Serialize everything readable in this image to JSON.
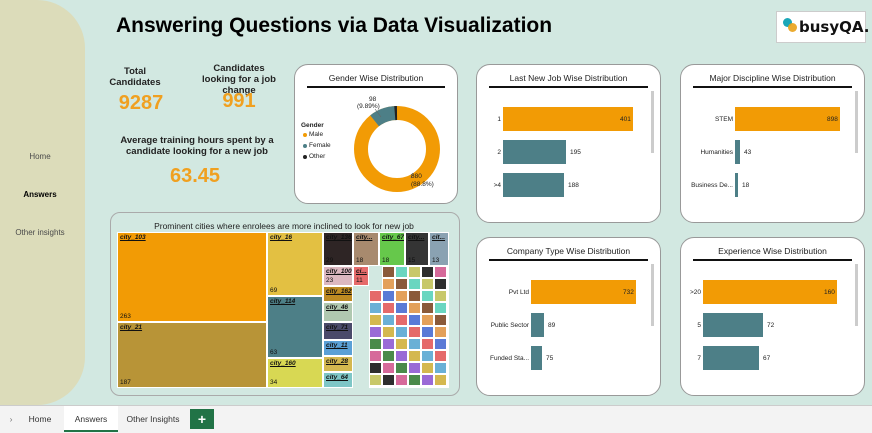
{
  "title": "Answering Questions via Data Visualization",
  "logo": {
    "text": "busyQA."
  },
  "nav": [
    {
      "label": "Home"
    },
    {
      "label": "Answers"
    },
    {
      "label": "Other insights"
    }
  ],
  "kpis": {
    "total_label": "Total Candidates",
    "total_value": "9287",
    "change_label": "Candidates looking for a job change",
    "change_value": "991",
    "training_label": "Average training hours spent by a candidate looking for a new job",
    "training_value": "63.45"
  },
  "gender": {
    "title": "Gender Wise Distribution",
    "legend_title": "Gender",
    "legend": [
      "Male",
      "Female",
      "Other"
    ],
    "label_a": "98",
    "label_a_pct": "(9.89%)",
    "label_b": "880",
    "label_b_pct": "(88.8%)"
  },
  "colors": {
    "orange": "#f29b05",
    "teal": "#4d7f87",
    "accent_green": "#217346",
    "black": "#222222"
  },
  "last_new_job": {
    "title": "Last New Job Wise Distribution",
    "categories": [
      "1",
      "2",
      ">4"
    ],
    "values": [
      401,
      195,
      188
    ]
  },
  "major": {
    "title": "Major Discipline Wise Distribution",
    "categories": [
      "STEM",
      "Humanities",
      "Business De..."
    ],
    "values": [
      898,
      43,
      18
    ]
  },
  "company": {
    "title": "Company Type Wise Distribution",
    "categories": [
      "Pvt Ltd",
      "Public Sector",
      "Funded Sta..."
    ],
    "values": [
      732,
      89,
      75
    ]
  },
  "experience": {
    "title": "Experience Wise Distribution",
    "categories": [
      ">20",
      "5",
      "7"
    ],
    "values": [
      160,
      72,
      67
    ]
  },
  "treemap": {
    "title": "Prominent cities where enrolees are more inclined to look for new job",
    "cells": [
      {
        "name": "city_103",
        "value": "263"
      },
      {
        "name": "city_21",
        "value": "187"
      },
      {
        "name": "city_16",
        "value": "69"
      },
      {
        "name": "city_114",
        "value": "63"
      },
      {
        "name": "city_160",
        "value": "34"
      },
      {
        "name": "city_136",
        "value": "29"
      },
      {
        "name": "city...",
        "value": "18"
      },
      {
        "name": "city_67",
        "value": "18"
      },
      {
        "name": "city...",
        "value": "15"
      },
      {
        "name": "cit...",
        "value": "13"
      },
      {
        "name": "city_100",
        "value": "23"
      },
      {
        "name": "ci...",
        "value": "11"
      },
      {
        "name": "city_162",
        "value": ""
      },
      {
        "name": "city_46",
        "value": ""
      },
      {
        "name": "city_71",
        "value": ""
      },
      {
        "name": "city_11",
        "value": ""
      },
      {
        "name": "city_28",
        "value": ""
      },
      {
        "name": "city_64",
        "value": ""
      }
    ]
  },
  "tabs": [
    "Home",
    "Answers",
    "Other Insights"
  ],
  "add_tab_label": "+",
  "scroll_left_label": "›"
}
